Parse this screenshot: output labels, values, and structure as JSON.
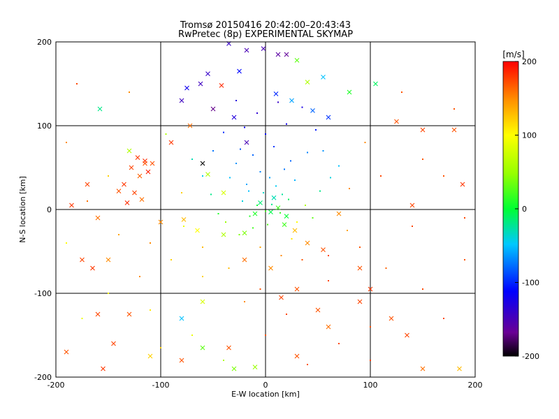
{
  "chart_data": {
    "type": "scatter",
    "title": "Tromsø 20150416 20:42:00–20:43:43",
    "subtitle": "RwPretec (8p) EXPERIMENTAL SKYMAP",
    "xlabel": "E-W location [km]",
    "ylabel": "N-S location [km]",
    "xlim": [
      -200,
      200
    ],
    "ylim": [
      -200,
      200
    ],
    "xticks": [
      -200,
      -100,
      0,
      100,
      200
    ],
    "yticks": [
      -200,
      -100,
      0,
      100,
      200
    ],
    "grid": true,
    "colorbar": {
      "label": "[m/s]",
      "range": [
        -200,
        200
      ],
      "ticks": [
        200,
        100,
        0,
        -100,
        -200
      ],
      "colormap": "rainbow (black-purple-blue-cyan-green-yellow-orange-red)"
    },
    "series": [
      {
        "marker": "x",
        "points": [
          [
            -122,
            62,
            180
          ],
          [
            -115,
            58,
            185
          ],
          [
            -108,
            55,
            170
          ],
          [
            -128,
            50,
            175
          ],
          [
            -112,
            45,
            190
          ],
          [
            -120,
            40,
            165
          ],
          [
            -135,
            30,
            180
          ],
          [
            -125,
            20,
            175
          ],
          [
            -118,
            12,
            160
          ],
          [
            -132,
            8,
            185
          ],
          [
            -140,
            22,
            170
          ],
          [
            -100,
            -15,
            150
          ],
          [
            -78,
            -12,
            130
          ],
          [
            -65,
            -25,
            100
          ],
          [
            -40,
            -30,
            60
          ],
          [
            -20,
            -28,
            40
          ],
          [
            -160,
            -10,
            160
          ],
          [
            -150,
            -60,
            150
          ],
          [
            -165,
            -70,
            180
          ],
          [
            -130,
            -125,
            170
          ],
          [
            -145,
            -160,
            175
          ],
          [
            -155,
            -190,
            180
          ],
          [
            -110,
            -175,
            120
          ],
          [
            -80,
            -130,
            -50
          ],
          [
            -60,
            -165,
            30
          ],
          [
            -30,
            -190,
            40
          ],
          [
            -10,
            -188,
            50
          ],
          [
            30,
            -175,
            170
          ],
          [
            60,
            -140,
            160
          ],
          [
            90,
            -110,
            175
          ],
          [
            100,
            -95,
            180
          ],
          [
            120,
            -130,
            170
          ],
          [
            135,
            -150,
            175
          ],
          [
            150,
            -190,
            160
          ],
          [
            185,
            -190,
            130
          ],
          [
            -10,
            -5,
            10
          ],
          [
            5,
            -3,
            -5
          ],
          [
            12,
            2,
            20
          ],
          [
            20,
            -8,
            0
          ],
          [
            -5,
            8,
            -15
          ],
          [
            8,
            14,
            -30
          ],
          [
            18,
            -18,
            20
          ],
          [
            28,
            -25,
            130
          ],
          [
            40,
            -40,
            150
          ],
          [
            55,
            -48,
            170
          ],
          [
            -40,
            20,
            80
          ],
          [
            -55,
            42,
            60
          ],
          [
            -60,
            55,
            -200
          ],
          [
            -18,
            80,
            -150
          ],
          [
            -30,
            110,
            -130
          ],
          [
            -50,
            120,
            -170
          ],
          [
            -62,
            150,
            -145
          ],
          [
            -75,
            145,
            -120
          ],
          [
            -42,
            148,
            185
          ],
          [
            -55,
            162,
            -140
          ],
          [
            -25,
            165,
            -110
          ],
          [
            -18,
            190,
            -150
          ],
          [
            -35,
            198,
            -140
          ],
          [
            -2,
            192,
            -150
          ],
          [
            12,
            185,
            -160
          ],
          [
            20,
            185,
            -165
          ],
          [
            30,
            178,
            30
          ],
          [
            40,
            152,
            60
          ],
          [
            55,
            158,
            -50
          ],
          [
            10,
            138,
            -100
          ],
          [
            25,
            130,
            -60
          ],
          [
            45,
            118,
            -80
          ],
          [
            60,
            110,
            -95
          ],
          [
            80,
            140,
            10
          ],
          [
            105,
            150,
            -10
          ],
          [
            125,
            105,
            170
          ],
          [
            150,
            95,
            175
          ],
          [
            180,
            95,
            170
          ],
          [
            188,
            30,
            180
          ],
          [
            140,
            5,
            175
          ],
          [
            90,
            -70,
            170
          ],
          [
            70,
            -5,
            150
          ],
          [
            -90,
            80,
            180
          ],
          [
            -72,
            100,
            160
          ],
          [
            -80,
            130,
            -145
          ],
          [
            -158,
            120,
            -20
          ],
          [
            -130,
            70,
            60
          ],
          [
            -115,
            55,
            170
          ],
          [
            -170,
            30,
            175
          ],
          [
            -185,
            5,
            180
          ],
          [
            -175,
            -60,
            175
          ],
          [
            -160,
            -125,
            175
          ],
          [
            -190,
            -170,
            170
          ],
          [
            -60,
            -110,
            80
          ],
          [
            -20,
            -60,
            160
          ],
          [
            5,
            -70,
            150
          ],
          [
            15,
            -105,
            175
          ],
          [
            30,
            -95,
            170
          ],
          [
            50,
            -120,
            170
          ],
          [
            -35,
            -165,
            170
          ],
          [
            -80,
            -180,
            170
          ]
        ]
      },
      {
        "marker": "dot",
        "points": [
          [
            -15,
            -8,
            10
          ],
          [
            -8,
            5,
            0
          ],
          [
            0,
            -2,
            20
          ],
          [
            6,
            6,
            -20
          ],
          [
            14,
            -4,
            15
          ],
          [
            -22,
            10,
            -40
          ],
          [
            22,
            12,
            -10
          ],
          [
            -2,
            20,
            -35
          ],
          [
            10,
            28,
            -45
          ],
          [
            -18,
            30,
            -60
          ],
          [
            28,
            35,
            -55
          ],
          [
            -5,
            45,
            -70
          ],
          [
            18,
            48,
            -75
          ],
          [
            -28,
            55,
            -65
          ],
          [
            -12,
            65,
            -80
          ],
          [
            8,
            75,
            -95
          ],
          [
            0,
            90,
            -110
          ],
          [
            -20,
            98,
            -115
          ],
          [
            20,
            102,
            -120
          ],
          [
            -8,
            115,
            -135
          ],
          [
            12,
            128,
            -140
          ],
          [
            -28,
            130,
            -130
          ],
          [
            35,
            122,
            -125
          ],
          [
            -40,
            92,
            -100
          ],
          [
            48,
            95,
            -105
          ],
          [
            -50,
            70,
            -75
          ],
          [
            55,
            70,
            -65
          ],
          [
            -60,
            40,
            -45
          ],
          [
            62,
            38,
            -40
          ],
          [
            -45,
            -5,
            10
          ],
          [
            45,
            -10,
            30
          ],
          [
            -25,
            -30,
            40
          ],
          [
            25,
            -35,
            110
          ],
          [
            -60,
            -45,
            130
          ],
          [
            60,
            -55,
            175
          ],
          [
            -90,
            -60,
            120
          ],
          [
            90,
            -45,
            170
          ],
          [
            -120,
            -80,
            150
          ],
          [
            115,
            -70,
            165
          ],
          [
            -150,
            -100,
            100
          ],
          [
            150,
            -95,
            175
          ],
          [
            -175,
            -130,
            90
          ],
          [
            170,
            -130,
            175
          ],
          [
            -110,
            -120,
            110
          ],
          [
            100,
            -140,
            170
          ],
          [
            -70,
            -150,
            90
          ],
          [
            70,
            -160,
            175
          ],
          [
            -40,
            -180,
            60
          ],
          [
            40,
            -185,
            170
          ],
          [
            0,
            -150,
            170
          ],
          [
            -140,
            -30,
            140
          ],
          [
            140,
            -20,
            175
          ],
          [
            -170,
            10,
            160
          ],
          [
            170,
            40,
            170
          ],
          [
            -110,
            -40,
            150
          ],
          [
            110,
            40,
            175
          ],
          [
            -80,
            20,
            120
          ],
          [
            80,
            25,
            150
          ],
          [
            -95,
            90,
            60
          ],
          [
            95,
            80,
            150
          ],
          [
            -130,
            140,
            150
          ],
          [
            130,
            140,
            170
          ],
          [
            -180,
            150,
            175
          ],
          [
            180,
            120,
            170
          ],
          [
            -60,
            -80,
            120
          ],
          [
            60,
            -85,
            175
          ],
          [
            -20,
            -110,
            150
          ],
          [
            20,
            -125,
            175
          ],
          [
            -100,
            -165,
            120
          ],
          [
            100,
            -180,
            175
          ],
          [
            -190,
            -40,
            100
          ],
          [
            190,
            -60,
            170
          ],
          [
            -5,
            -45,
            140
          ],
          [
            35,
            -60,
            170
          ],
          [
            -35,
            -70,
            130
          ],
          [
            15,
            -55,
            150
          ],
          [
            30,
            -15,
            100
          ],
          [
            38,
            5,
            60
          ],
          [
            -38,
            -15,
            50
          ],
          [
            -12,
            -22,
            20
          ],
          [
            2,
            -18,
            25
          ],
          [
            16,
            18,
            -25
          ],
          [
            -16,
            22,
            -50
          ],
          [
            4,
            38,
            -60
          ],
          [
            24,
            58,
            -80
          ],
          [
            -24,
            72,
            -85
          ],
          [
            40,
            68,
            -70
          ],
          [
            -34,
            38,
            -50
          ],
          [
            52,
            22,
            -20
          ],
          [
            -52,
            18,
            -20
          ],
          [
            -70,
            60,
            -30
          ],
          [
            70,
            52,
            -50
          ],
          [
            -78,
            -20,
            90
          ],
          [
            78,
            -25,
            140
          ],
          [
            -5,
            -95,
            170
          ],
          [
            -150,
            40,
            120
          ],
          [
            150,
            60,
            170
          ],
          [
            -190,
            80,
            150
          ],
          [
            190,
            -10,
            175
          ]
        ]
      }
    ]
  }
}
